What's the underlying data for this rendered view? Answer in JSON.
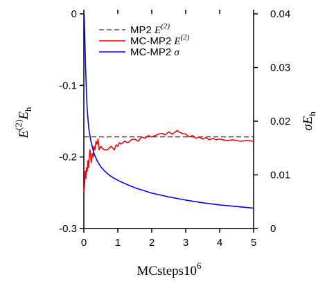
{
  "chart_data": {
    "type": "line",
    "xlabel": {
      "main": "MCsteps",
      "super": "6",
      "sep": "10"
    },
    "ylabel_left": {
      "pre": "E",
      "sup": "(2)",
      "main": "E",
      "sub": "h"
    },
    "ylabel_right": {
      "pre": "σ",
      "main": "E",
      "sub": "h"
    },
    "xlim": [
      0,
      5
    ],
    "ylim_left": [
      -0.3,
      0
    ],
    "ylim_right": [
      0,
      0.04
    ],
    "xticks": [
      "0",
      "1",
      "2",
      "3",
      "4",
      "5"
    ],
    "yticks_left": [
      "0",
      "-0.1",
      "-0.2",
      "-0.3"
    ],
    "yticks_right": [
      "0.04",
      "0.03",
      "0.02",
      "0.01",
      "0"
    ],
    "legend_position": "top-right",
    "legend": [
      {
        "text": "MP2 ",
        "italic_part": "E",
        "sup": "(2)",
        "color": "#000000",
        "dash": true
      },
      {
        "text": "MC-MP2 ",
        "italic_part": "E",
        "sup": "(2)",
        "color": "#ff0000",
        "dash": false
      },
      {
        "text": "MC-MP2 ",
        "italic_part": "σ",
        "sup": "",
        "color": "#0000ff",
        "dash": false
      }
    ],
    "series": [
      {
        "name": "MP2 E(2)",
        "axis": "left",
        "color": "#000000",
        "style": "dashed",
        "x": [
          0,
          5
        ],
        "y": [
          -0.172,
          -0.172
        ]
      },
      {
        "name": "MC-MP2 E(2)",
        "axis": "left",
        "color": "#ff0000",
        "style": "solid",
        "x": [
          0.0,
          0.02,
          0.04,
          0.06,
          0.08,
          0.1,
          0.12,
          0.14,
          0.16,
          0.18,
          0.2,
          0.22,
          0.25,
          0.28,
          0.3,
          0.33,
          0.36,
          0.39,
          0.42,
          0.45,
          0.5,
          0.55,
          0.6,
          0.7,
          0.8,
          0.9,
          0.95,
          1.0,
          1.05,
          1.1,
          1.2,
          1.3,
          1.4,
          1.5,
          1.6,
          1.7,
          1.8,
          1.9,
          2.0,
          2.1,
          2.2,
          2.3,
          2.4,
          2.5,
          2.6,
          2.7,
          2.75,
          2.8,
          2.9,
          3.0,
          3.1,
          3.2,
          3.3,
          3.4,
          3.5,
          3.6,
          3.7,
          3.8,
          3.9,
          4.0,
          4.2,
          4.4,
          4.6,
          4.8,
          5.0
        ],
        "y": [
          -0.25,
          -0.24,
          -0.22,
          -0.23,
          -0.215,
          -0.22,
          -0.205,
          -0.215,
          -0.2,
          -0.19,
          -0.198,
          -0.208,
          -0.195,
          -0.2,
          -0.185,
          -0.19,
          -0.178,
          -0.182,
          -0.175,
          -0.19,
          -0.185,
          -0.188,
          -0.19,
          -0.19,
          -0.185,
          -0.19,
          -0.183,
          -0.185,
          -0.18,
          -0.182,
          -0.178,
          -0.18,
          -0.176,
          -0.175,
          -0.178,
          -0.172,
          -0.174,
          -0.17,
          -0.172,
          -0.17,
          -0.168,
          -0.167,
          -0.169,
          -0.165,
          -0.168,
          -0.165,
          -0.163,
          -0.165,
          -0.167,
          -0.168,
          -0.172,
          -0.17,
          -0.174,
          -0.172,
          -0.175,
          -0.173,
          -0.176,
          -0.174,
          -0.176,
          -0.175,
          -0.177,
          -0.176,
          -0.178,
          -0.177,
          -0.178
        ]
      },
      {
        "name": "MC-MP2 σ",
        "axis": "right",
        "color": "#0000ff",
        "style": "solid",
        "x": [
          0.01,
          0.03,
          0.05,
          0.08,
          0.1,
          0.15,
          0.2,
          0.3,
          0.4,
          0.5,
          0.6,
          0.7,
          0.8,
          1.0,
          1.2,
          1.5,
          1.8,
          2.0,
          2.5,
          3.0,
          3.5,
          4.0,
          4.5,
          5.0
        ],
        "y": [
          0.04,
          0.035,
          0.03,
          0.025,
          0.022,
          0.0185,
          0.0165,
          0.014,
          0.0125,
          0.0115,
          0.0108,
          0.0102,
          0.0097,
          0.009,
          0.0084,
          0.0076,
          0.007,
          0.0066,
          0.0059,
          0.0053,
          0.0048,
          0.0044,
          0.0041,
          0.0038
        ]
      }
    ]
  }
}
